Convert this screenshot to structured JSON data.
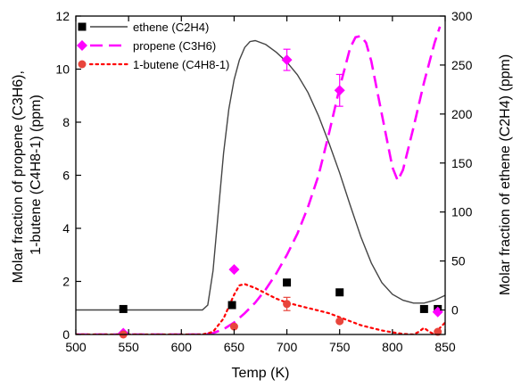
{
  "chart_data": {
    "type": "line",
    "xlabel": "Temp (K)",
    "ylabel_left": [
      "Molar fraction of propene (C3H6),",
      "1-butene (C4H8-1) (ppm)"
    ],
    "ylabel_right": "Molar fraction of ethene (C2H4) (ppm)",
    "xlim": [
      500,
      850
    ],
    "ylim_left": [
      0,
      12
    ],
    "ylim_right": [
      -25,
      300
    ],
    "x_ticks": [
      "500",
      "550",
      "600",
      "650",
      "700",
      "750",
      "800",
      "850"
    ],
    "y_ticks_left": [
      "0",
      "2",
      "4",
      "6",
      "8",
      "10",
      "12"
    ],
    "y_ticks_right": [
      "0",
      "50",
      "100",
      "150",
      "200",
      "250",
      "300"
    ],
    "legend_position": "top-left",
    "colors": {
      "ethene": "#444444",
      "ethene_marker": "#000000",
      "propene": "#ff00ff",
      "butene": "#ff0000",
      "butene_marker": "#e8453c"
    },
    "series": [
      {
        "name": "ethene (C2H4)",
        "axis": "right",
        "style": "solid",
        "marker": "square",
        "model": [
          [
            500,
            0
          ],
          [
            550,
            0
          ],
          [
            600,
            0
          ],
          [
            620,
            0
          ],
          [
            625,
            5
          ],
          [
            630,
            40
          ],
          [
            635,
            100
          ],
          [
            640,
            160
          ],
          [
            645,
            205
          ],
          [
            650,
            235
          ],
          [
            655,
            255
          ],
          [
            660,
            268
          ],
          [
            665,
            274
          ],
          [
            670,
            275
          ],
          [
            680,
            271
          ],
          [
            690,
            263
          ],
          [
            700,
            253
          ],
          [
            710,
            240
          ],
          [
            720,
            222
          ],
          [
            730,
            198
          ],
          [
            740,
            170
          ],
          [
            750,
            140
          ],
          [
            760,
            107
          ],
          [
            770,
            75
          ],
          [
            780,
            48
          ],
          [
            790,
            28
          ],
          [
            800,
            16
          ],
          [
            810,
            10
          ],
          [
            820,
            7
          ],
          [
            830,
            7
          ],
          [
            840,
            10
          ],
          [
            850,
            15
          ]
        ],
        "points": [
          [
            545,
            1
          ],
          [
            648,
            5
          ],
          [
            700,
            28
          ],
          [
            750,
            18
          ],
          [
            830,
            1
          ],
          [
            843,
            1
          ]
        ]
      },
      {
        "name": "propene (C3H6)",
        "axis": "left",
        "style": "dashed",
        "marker": "diamond",
        "model": [
          [
            500,
            0
          ],
          [
            600,
            0
          ],
          [
            620,
            0
          ],
          [
            630,
            0.05
          ],
          [
            640,
            0.2
          ],
          [
            650,
            0.45
          ],
          [
            660,
            0.8
          ],
          [
            670,
            1.2
          ],
          [
            680,
            1.7
          ],
          [
            690,
            2.3
          ],
          [
            700,
            3.0
          ],
          [
            710,
            3.8
          ],
          [
            720,
            4.8
          ],
          [
            730,
            6.0
          ],
          [
            740,
            7.6
          ],
          [
            750,
            9.3
          ],
          [
            760,
            10.8
          ],
          [
            765,
            11.2
          ],
          [
            770,
            11.25
          ],
          [
            775,
            11.0
          ],
          [
            780,
            10.3
          ],
          [
            790,
            8.3
          ],
          [
            800,
            6.3
          ],
          [
            805,
            5.8
          ],
          [
            810,
            6.2
          ],
          [
            820,
            7.8
          ],
          [
            830,
            9.5
          ],
          [
            840,
            11.0
          ],
          [
            845,
            11.6
          ]
        ],
        "points": [
          [
            545,
            0.05
          ],
          [
            650,
            2.45
          ],
          [
            700,
            10.35
          ],
          [
            750,
            9.2
          ],
          [
            843,
            0.85
          ]
        ],
        "errors": [
          [
            700,
            0.4
          ],
          [
            750,
            0.6
          ]
        ]
      },
      {
        "name": "1-butene (C4H8-1)",
        "axis": "left",
        "style": "dotted",
        "marker": "circle",
        "model": [
          [
            500,
            0
          ],
          [
            620,
            0
          ],
          [
            630,
            0.1
          ],
          [
            640,
            0.6
          ],
          [
            650,
            1.5
          ],
          [
            655,
            1.85
          ],
          [
            660,
            1.9
          ],
          [
            670,
            1.75
          ],
          [
            680,
            1.55
          ],
          [
            690,
            1.35
          ],
          [
            700,
            1.2
          ],
          [
            710,
            1.1
          ],
          [
            720,
            1.0
          ],
          [
            730,
            0.9
          ],
          [
            740,
            0.8
          ],
          [
            750,
            0.65
          ],
          [
            760,
            0.5
          ],
          [
            770,
            0.35
          ],
          [
            780,
            0.25
          ],
          [
            790,
            0.15
          ],
          [
            800,
            0.08
          ],
          [
            810,
            0.02
          ],
          [
            820,
            0
          ],
          [
            825,
            0.1
          ],
          [
            830,
            0.25
          ],
          [
            835,
            0.1
          ],
          [
            840,
            0
          ],
          [
            845,
            0.25
          ],
          [
            850,
            0.45
          ]
        ],
        "points": [
          [
            545,
            0
          ],
          [
            650,
            0.3
          ],
          [
            700,
            1.15
          ],
          [
            750,
            0.5
          ],
          [
            843,
            0.1
          ]
        ],
        "errors": [
          [
            700,
            0.25
          ]
        ]
      }
    ]
  }
}
